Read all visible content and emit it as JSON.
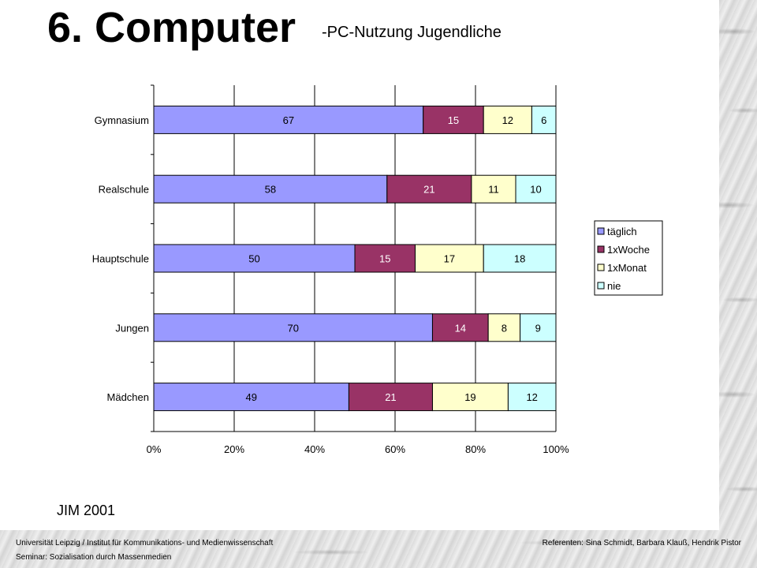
{
  "slide": {
    "title": "6. Computer",
    "subtitle": "-PC-Nutzung Jugendliche",
    "source": "JIM 2001",
    "footer_left_1": "Universität Leipzig / Institut für Kommunikations- und Medienwissenschaft",
    "footer_left_2": "Seminar: Sozialisation durch Massenmedien",
    "footer_right": "Referenten: Sina Schmidt, Barbara Klauß, Hendrik Pistor"
  },
  "chart_data": {
    "type": "bar",
    "orientation": "horizontal",
    "stacked": "percent",
    "categories": [
      "Gymnasium",
      "Realschule",
      "Hauptschule",
      "Jungen",
      "Mädchen"
    ],
    "series": [
      {
        "name": "täglich",
        "color": "#9999ff",
        "values": [
          67,
          58,
          50,
          70,
          49
        ]
      },
      {
        "name": "1xWoche",
        "color": "#993366",
        "values": [
          15,
          21,
          15,
          14,
          21
        ]
      },
      {
        "name": "1xMonat",
        "color": "#ffffcc",
        "values": [
          12,
          11,
          17,
          8,
          19
        ]
      },
      {
        "name": "nie",
        "color": "#ccffff",
        "values": [
          6,
          10,
          18,
          9,
          12
        ]
      }
    ],
    "xticks": [
      "0%",
      "20%",
      "40%",
      "60%",
      "80%",
      "100%"
    ],
    "xlim": [
      0,
      100
    ],
    "grid": true,
    "legend": "right"
  }
}
